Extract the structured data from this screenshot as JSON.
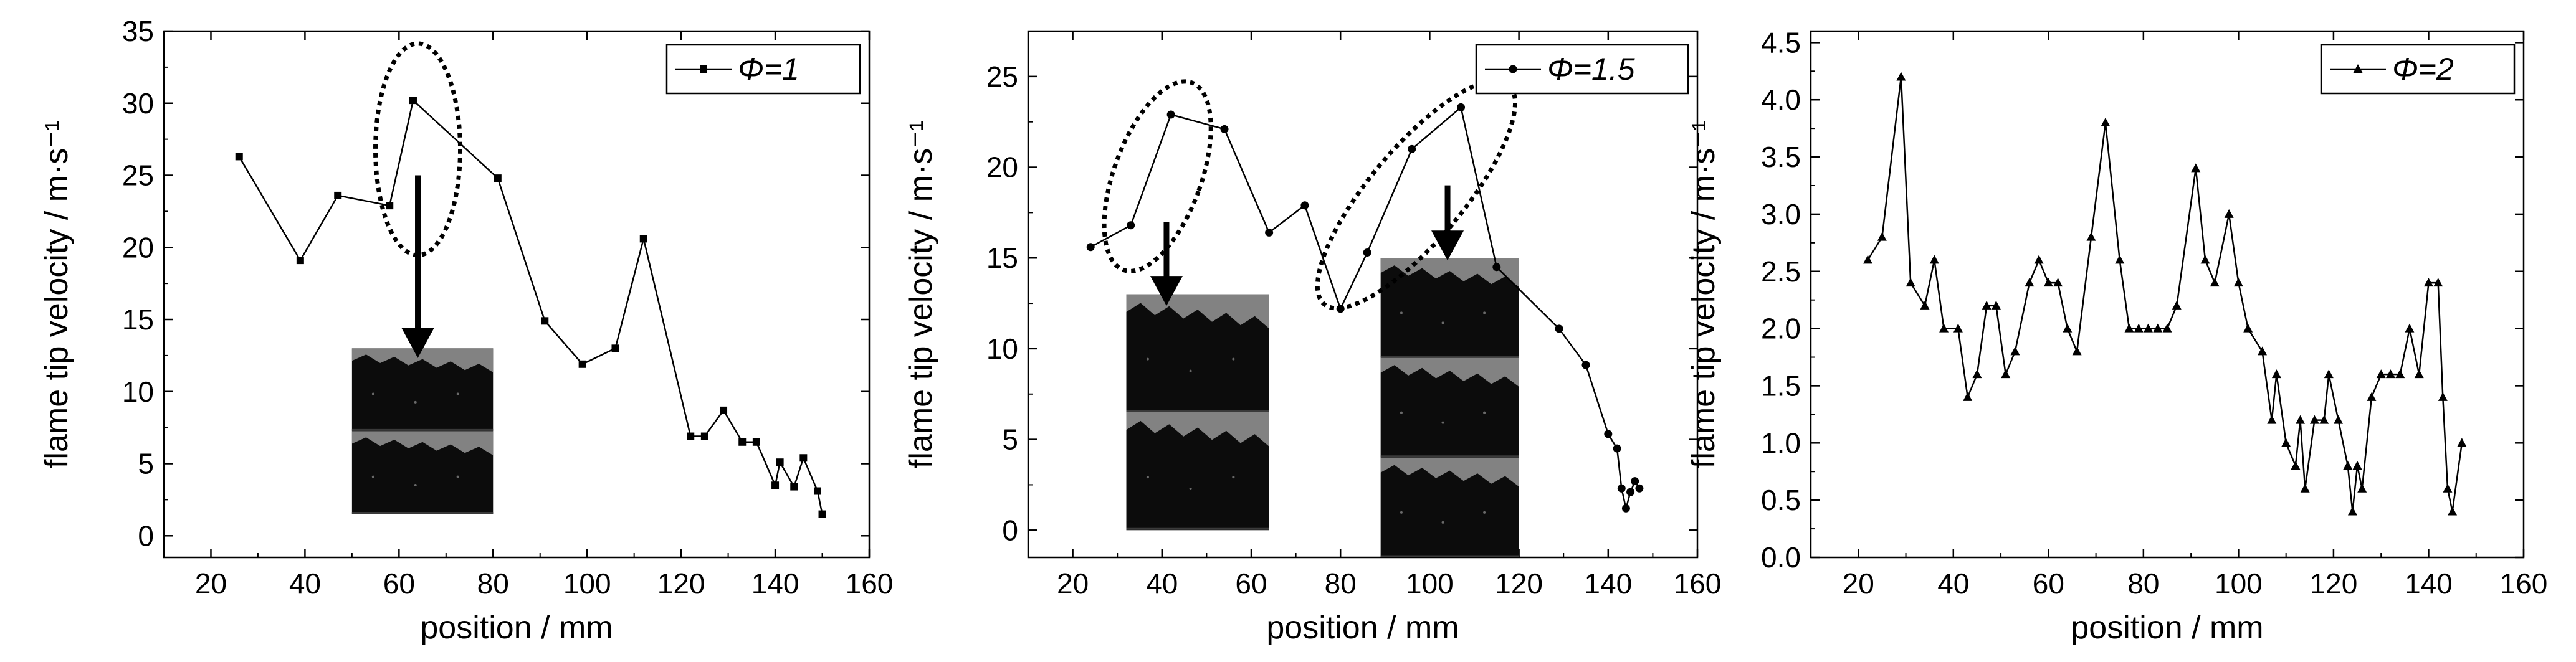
{
  "figure": {
    "panels": [
      {
        "legend": "Φ=1"
      },
      {
        "legend": "Φ=1.5"
      },
      {
        "legend": "Φ=2"
      }
    ]
  },
  "chart_data": [
    {
      "type": "line",
      "marker": "square",
      "xlabel": "position / mm",
      "ylabel": "flame tip velocity / m·s⁻¹",
      "xlim": [
        10,
        160
      ],
      "ylim": [
        -1.5,
        35
      ],
      "xticks": [
        20,
        40,
        60,
        80,
        100,
        120,
        140,
        160
      ],
      "yticks": [
        0,
        5,
        10,
        15,
        20,
        25,
        30,
        35
      ],
      "legend_position": "top-right",
      "series": [
        {
          "name": "Φ=1",
          "x": [
            26,
            39,
            47,
            58,
            63,
            81,
            91,
            99,
            106,
            112,
            122,
            125,
            129,
            133,
            136,
            140,
            141,
            144,
            146,
            149,
            150
          ],
          "y": [
            26.3,
            19.1,
            23.6,
            22.9,
            30.2,
            24.8,
            14.9,
            11.9,
            13.0,
            20.6,
            6.9,
            6.9,
            8.7,
            6.5,
            6.5,
            3.5,
            5.1,
            3.4,
            5.4,
            3.1,
            1.5
          ]
        }
      ],
      "annotations": [
        {
          "type": "dashed-ellipse",
          "x": 64,
          "y": 26.8
        },
        {
          "type": "arrow",
          "from": [
            64,
            25
          ],
          "to": [
            64,
            12.5
          ]
        },
        {
          "type": "inset-image",
          "description": "flame photograph",
          "x": [
            50,
            80
          ],
          "y": [
            1.5,
            13
          ]
        }
      ]
    },
    {
      "type": "line",
      "marker": "circle",
      "xlabel": "position / mm",
      "ylabel": "flame tip velocity / m·s⁻¹",
      "xlim": [
        10,
        160
      ],
      "ylim": [
        -1.5,
        27.5
      ],
      "xticks": [
        20,
        40,
        60,
        80,
        100,
        120,
        140,
        160
      ],
      "yticks": [
        0,
        5,
        10,
        15,
        20,
        25
      ],
      "legend_position": "top-right",
      "series": [
        {
          "name": "Φ=1.5",
          "x": [
            24,
            33,
            42,
            54,
            64,
            72,
            80,
            86,
            96,
            107,
            115,
            129,
            135,
            140,
            142,
            143,
            144,
            145,
            146,
            147
          ],
          "y": [
            15.6,
            16.8,
            22.9,
            22.1,
            16.4,
            17.9,
            12.2,
            15.3,
            21.0,
            23.3,
            14.5,
            11.1,
            9.1,
            5.3,
            4.5,
            2.3,
            1.2,
            2.1,
            2.7,
            2.3
          ]
        }
      ],
      "annotations": [
        {
          "type": "dashed-ellipse",
          "x": 39,
          "y": 19.5
        },
        {
          "type": "dashed-ellipse",
          "x": 97,
          "y": 18.5
        },
        {
          "type": "arrow",
          "from": [
            41,
            17
          ],
          "to": [
            41,
            12.5
          ]
        },
        {
          "type": "arrow",
          "from": [
            104,
            19
          ],
          "to": [
            104,
            15
          ]
        },
        {
          "type": "inset-image",
          "description": "flame photograph",
          "x": [
            32,
            64
          ],
          "y": [
            0,
            13
          ]
        },
        {
          "type": "inset-image",
          "description": "flame photograph",
          "x": [
            89,
            120
          ],
          "y": [
            -1.5,
            15
          ]
        }
      ]
    },
    {
      "type": "line",
      "marker": "triangle",
      "xlabel": "position / mm",
      "ylabel": "flame tip velocity / m·s⁻¹",
      "xlim": [
        10,
        160
      ],
      "ylim": [
        0,
        4.6
      ],
      "xticks": [
        20,
        40,
        60,
        80,
        100,
        120,
        140,
        160
      ],
      "yticks": [
        0.0,
        0.5,
        1.0,
        1.5,
        2.0,
        2.5,
        3.0,
        3.5,
        4.0,
        4.5
      ],
      "legend_position": "top-right",
      "series": [
        {
          "name": "Φ=2",
          "x": [
            22,
            25,
            29,
            31,
            34,
            36,
            38,
            41,
            43,
            45,
            47,
            49,
            51,
            53,
            56,
            58,
            60,
            62,
            64,
            66,
            69,
            72,
            75,
            77,
            79,
            81,
            83,
            85,
            87,
            91,
            93,
            95,
            98,
            100,
            102,
            105,
            107,
            108,
            110,
            112,
            113,
            114,
            116,
            118,
            119,
            121,
            123,
            124,
            125,
            126,
            128,
            130,
            132,
            134,
            136,
            138,
            140,
            142,
            143,
            144,
            145,
            147
          ],
          "y": [
            2.6,
            2.8,
            4.2,
            2.4,
            2.2,
            2.6,
            2.0,
            2.0,
            1.4,
            1.6,
            2.2,
            2.2,
            1.6,
            1.8,
            2.4,
            2.6,
            2.4,
            2.4,
            2.0,
            1.8,
            2.8,
            3.8,
            2.6,
            2.0,
            2.0,
            2.0,
            2.0,
            2.0,
            2.2,
            3.4,
            2.6,
            2.4,
            3.0,
            2.4,
            2.0,
            1.8,
            1.2,
            1.6,
            1.0,
            0.8,
            1.2,
            0.6,
            1.2,
            1.2,
            1.6,
            1.2,
            0.8,
            0.4,
            0.8,
            0.6,
            1.4,
            1.6,
            1.6,
            1.6,
            2.0,
            1.6,
            2.4,
            2.4,
            1.4,
            0.6,
            0.4,
            1.0
          ]
        }
      ],
      "annotations": []
    }
  ]
}
